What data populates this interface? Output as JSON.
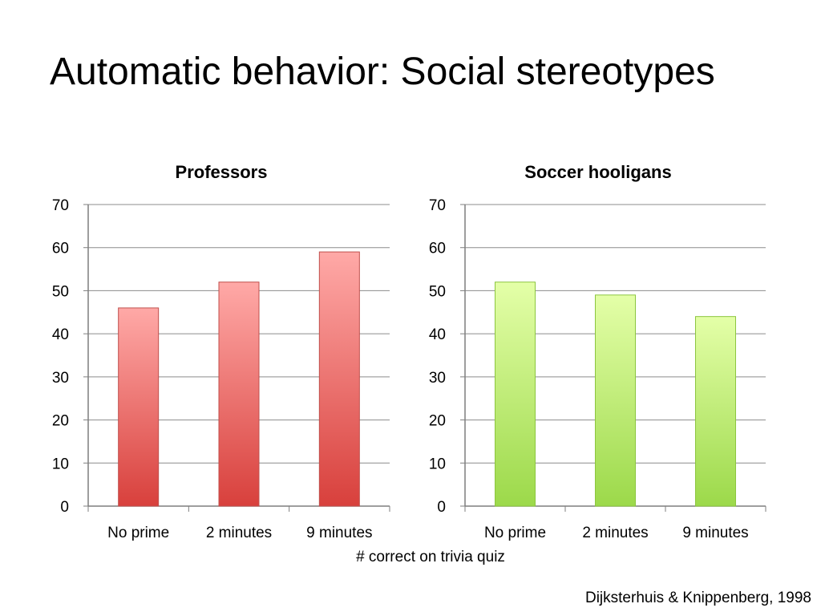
{
  "slide": {
    "title": "Automatic behavior: Social stereotypes",
    "shared_axis_label": "# correct on trivia quiz",
    "citation": "Dijksterhuis & Knippenberg, 1998"
  },
  "chart_data": [
    {
      "type": "bar",
      "title": "Professors",
      "categories": [
        "No prime",
        "2 minutes",
        "9 minutes"
      ],
      "values": [
        46,
        52,
        59
      ],
      "ylim": [
        0,
        70
      ],
      "yticks": [
        0,
        10,
        20,
        30,
        40,
        50,
        60,
        70
      ],
      "grid": true,
      "color": "#e8605e"
    },
    {
      "type": "bar",
      "title": "Soccer hooligans",
      "categories": [
        "No prime",
        "2 minutes",
        "9 minutes"
      ],
      "values": [
        52,
        49,
        44
      ],
      "ylim": [
        0,
        70
      ],
      "yticks": [
        0,
        10,
        20,
        30,
        40,
        50,
        60,
        70
      ],
      "grid": true,
      "color": "#b5e36a"
    }
  ]
}
